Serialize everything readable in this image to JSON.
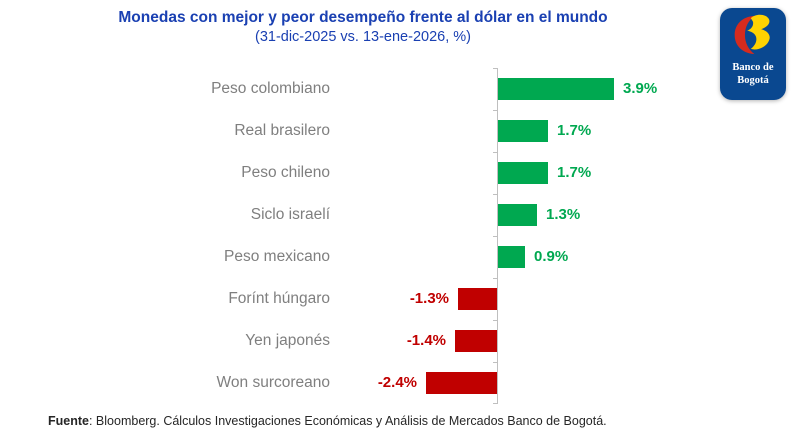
{
  "chart_data": {
    "type": "bar",
    "orientation": "horizontal",
    "title": "Monedas con mejor y peor desempeño frente al dólar en el mundo",
    "subtitle": "(31-dic-2025 vs. 13-ene-2026, %)",
    "categories": [
      "Peso colombiano",
      "Real brasilero",
      "Peso chileno",
      "Siclo israelí",
      "Peso mexicano",
      "Forínt húngaro",
      "Yen japonés",
      "Won surcoreano"
    ],
    "values": [
      3.9,
      1.7,
      1.7,
      1.3,
      0.9,
      -1.3,
      -1.4,
      -2.4
    ],
    "value_labels": [
      "3.9%",
      "1.7%",
      "1.7%",
      "1.3%",
      "0.9%",
      "-1.3%",
      "-1.4%",
      "-2.4%"
    ],
    "xlim": [
      -2.4,
      3.9
    ],
    "grid": false,
    "legend": "none",
    "positive_color": "#00A850",
    "negative_color": "#C00000",
    "axis_color": "#BFBFBF",
    "category_label_color": "#7F7F7F",
    "title_color": "#1A40B2"
  },
  "logo": {
    "name": "banco-de-bogota-logo",
    "line1": "Banco de",
    "line2": "Bogotá",
    "bg_color": "#0A4890",
    "red": "#D52B1E",
    "yellow": "#FFD200"
  },
  "footer": {
    "source_label": "Fuente",
    "source_text": ": Bloomberg. Cálculos Investigaciones Económicas y Análisis de Mercados Banco de Bogotá."
  }
}
